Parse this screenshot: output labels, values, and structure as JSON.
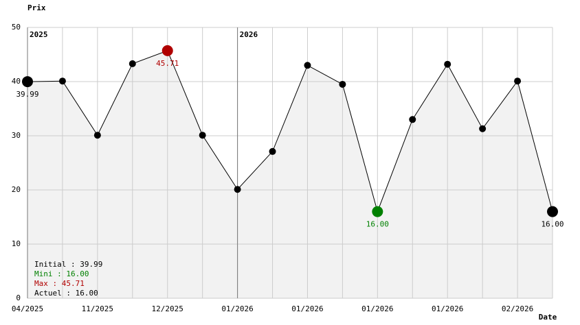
{
  "chart_data": {
    "type": "line",
    "y_label": "Prix",
    "x_label": "Date",
    "categories": [
      "04/2025",
      null,
      "11/2025",
      null,
      "12/2025",
      null,
      "01/2026",
      null,
      "01/2026",
      null,
      "01/2026",
      null,
      "01/2026",
      null,
      "02/2026",
      null
    ],
    "values": [
      39.99,
      40.1,
      30.1,
      43.3,
      45.71,
      30.1,
      20.1,
      27.1,
      43,
      39.5,
      16.0,
      33,
      43.2,
      31.3,
      40.1,
      16.0
    ],
    "value_labels": [
      "39.99",
      null,
      null,
      null,
      "45.71",
      null,
      null,
      null,
      null,
      null,
      "16.00",
      null,
      null,
      null,
      null,
      "16.00"
    ],
    "color": "#000000",
    "max_color": "#b00000",
    "min_color": "#008000",
    "fill_color": "#f2f2f2",
    "ylim": [
      0,
      50
    ],
    "yticks": [
      0,
      10,
      20,
      30,
      40,
      50
    ],
    "grid": true,
    "year_markers": [
      {
        "label": "2025",
        "category": 0
      },
      {
        "label": "2026",
        "category": 6
      }
    ],
    "legend": [
      {
        "text": "Initial : 39.99",
        "color": "#000000"
      },
      {
        "text": "Mini : 16.00",
        "color": "#008000"
      },
      {
        "text": "Max : 45.71",
        "color": "#b00000"
      },
      {
        "text": "Actuel : 16.00",
        "color": "#000000"
      }
    ]
  }
}
